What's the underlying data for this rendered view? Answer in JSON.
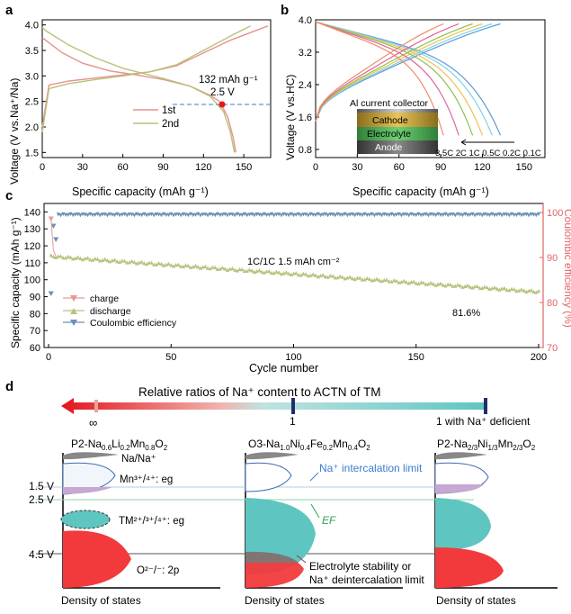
{
  "panels": {
    "a": {
      "label": "a",
      "xlabel": "Specific capacity (mAh g⁻¹)",
      "ylabel": "Voltage (V vs.Na⁺/Na)",
      "xticks": [
        "0",
        "30",
        "60",
        "90",
        "120",
        "150"
      ],
      "yticks": [
        "1.5",
        "2.0",
        "2.5",
        "3.0",
        "3.5",
        "4.0"
      ],
      "legend": [
        "1st",
        "2nd"
      ],
      "annotation": [
        "132 mAh g⁻¹",
        "2.5 V"
      ]
    },
    "b": {
      "label": "b",
      "xlabel": "Specific capacity (mAh g⁻¹)",
      "ylabel": "Voltage (V vs.HC)",
      "xticks": [
        "0",
        "30",
        "60",
        "90",
        "120",
        "150"
      ],
      "yticks": [
        "0.8",
        "1.6",
        "2.4",
        "3.2",
        "4.0"
      ],
      "inset": [
        "Al current collector",
        "Cathode",
        "Electrolyte",
        "Anode"
      ],
      "rates_label": "3.5C 2C  1C  0.5C  0.2C  0.1C"
    },
    "c": {
      "label": "c",
      "xlabel": "Cycle number",
      "ylabel": "Specific capacity (mAh g⁻¹)",
      "ylabel_right": "Coulombic efficiency (%)",
      "xticks": [
        "0",
        "50",
        "100",
        "150",
        "200"
      ],
      "yticks": [
        "60",
        "70",
        "80",
        "90",
        "100",
        "110",
        "120",
        "130",
        "140"
      ],
      "yticks_right": [
        "70",
        "80",
        "90",
        "100"
      ],
      "legend": [
        "charge",
        "discharge",
        "Coulombic efficiency"
      ],
      "condition": "1C/1C 1.5 mAh cm⁻²",
      "retention": "81.6%"
    },
    "d": {
      "label": "d",
      "title": "Relative ratios of Na⁺ content to ACTN of TM",
      "marks": [
        "∞",
        "1",
        "1 with Na⁺ deficient"
      ],
      "materials": [
        "P2-Na0.6Li0.2Mn0.8O2",
        "O3-Na1.0Ni0.4Fe0.2Mn0.4O2",
        "P2-Na2/3Ni1/3Mn2/3O2"
      ],
      "levels": [
        "1.5 V",
        "2.5 V",
        "4.5 V"
      ],
      "bands": [
        "Na/Na⁺",
        "Mn³⁺/⁴⁺: eg",
        "TM²⁺/³⁺/⁴⁺: eg",
        "O²⁻/⁻: 2p"
      ],
      "notes": [
        "Na⁺ intercalation limit",
        "EF",
        "Electrolyte stability or",
        "Na⁺ deintercalation limit"
      ],
      "axis_label": "Density of states"
    }
  },
  "chart_data": [
    {
      "type": "line",
      "title": "a",
      "xlabel": "Specific capacity (mAh g-1)",
      "ylabel": "Voltage (V vs.Na+/Na)",
      "xlim": [
        0,
        170
      ],
      "ylim": [
        1.4,
        4.1
      ],
      "series": [
        {
          "name": "1st charge",
          "x": [
            0,
            5,
            20,
            40,
            60,
            80,
            100,
            120,
            140,
            160,
            168
          ],
          "y": [
            2.0,
            2.82,
            2.9,
            2.96,
            3.02,
            3.08,
            3.2,
            3.45,
            3.7,
            3.9,
            3.98
          ]
        },
        {
          "name": "1st discharge",
          "x": [
            0,
            15,
            30,
            50,
            70,
            90,
            110,
            125,
            132,
            138,
            142,
            144
          ],
          "y": [
            3.75,
            3.45,
            3.25,
            3.1,
            3.02,
            2.93,
            2.8,
            2.62,
            2.5,
            2.2,
            1.8,
            1.5
          ]
        },
        {
          "name": "2nd charge",
          "x": [
            0,
            5,
            20,
            40,
            60,
            80,
            100,
            120,
            140,
            155
          ],
          "y": [
            1.9,
            2.75,
            2.85,
            2.93,
            3.0,
            3.08,
            3.22,
            3.5,
            3.78,
            3.98
          ]
        },
        {
          "name": "2nd discharge",
          "x": [
            0,
            3,
            20,
            40,
            60,
            75,
            90,
            110,
            125,
            135,
            140,
            143
          ],
          "y": [
            3.95,
            3.88,
            3.6,
            3.35,
            3.15,
            3.05,
            2.95,
            2.8,
            2.6,
            2.3,
            1.9,
            1.5
          ]
        }
      ]
    },
    {
      "type": "line",
      "title": "b",
      "xlabel": "Specific capacity (mAh g-1)",
      "ylabel": "Voltage (V vs.HC)",
      "xlim": [
        0,
        165
      ],
      "ylim": [
        0.6,
        4.0
      ],
      "series": [
        {
          "name": "0.1C",
          "cap": 133
        },
        {
          "name": "0.2C",
          "cap": 127
        },
        {
          "name": "0.5C",
          "cap": 120
        },
        {
          "name": "1C",
          "cap": 113
        },
        {
          "name": "2C",
          "cap": 103
        },
        {
          "name": "3.5C",
          "cap": 92
        }
      ]
    },
    {
      "type": "scatter",
      "title": "c",
      "xlabel": "Cycle number",
      "ylabel": "Specific capacity (mAh g-1)",
      "xlim": [
        0,
        200
      ],
      "ylim": [
        60,
        145
      ],
      "y2lim": [
        70,
        102
      ],
      "series": [
        {
          "name": "charge",
          "x": [
            1
          ],
          "y": [
            136
          ]
        },
        {
          "name": "discharge",
          "start": 114,
          "end": 93,
          "cycles": 200
        },
        {
          "name": "Coulombic efficiency",
          "first": [
            [
              1,
              82
            ],
            [
              2,
              97
            ],
            [
              3,
              94
            ]
          ],
          "stable": 99.5
        }
      ]
    }
  ]
}
